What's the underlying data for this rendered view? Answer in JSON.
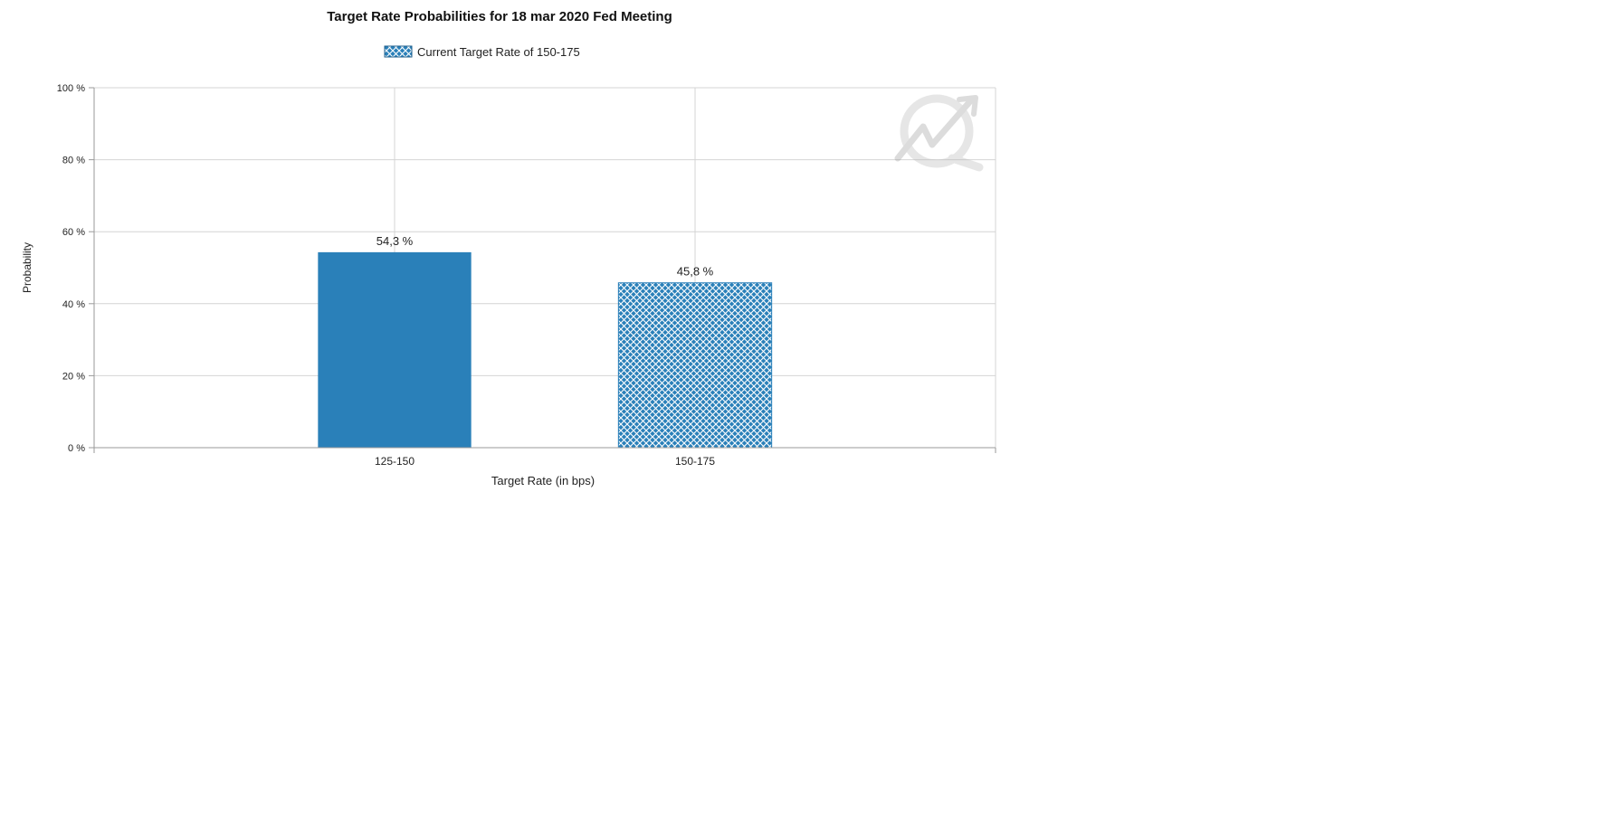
{
  "chart_data": {
    "type": "bar",
    "title": "Target Rate Probabilities for 18 mar 2020 Fed Meeting",
    "legend": {
      "label": "Current Target Rate of 150-175",
      "position": "top-center"
    },
    "xlabel": "Target Rate (in bps)",
    "ylabel": "Probability",
    "ylim": [
      0,
      100
    ],
    "yticks": [
      {
        "value": 0,
        "label": "0 %"
      },
      {
        "value": 20,
        "label": "20 %"
      },
      {
        "value": 40,
        "label": "40 %"
      },
      {
        "value": 60,
        "label": "60 %"
      },
      {
        "value": 80,
        "label": "80 %"
      },
      {
        "value": 100,
        "label": "100 %"
      }
    ],
    "categories": [
      "125-150",
      "150-175"
    ],
    "values": [
      54.3,
      45.8
    ],
    "data_labels": [
      "54,3 %",
      "45,8 %"
    ],
    "bars": [
      {
        "category": "125-150",
        "value": 54.3,
        "label": "54,3 %",
        "style": "solid"
      },
      {
        "category": "150-175",
        "value": 45.8,
        "label": "45,8 %",
        "style": "crosshatch",
        "current": true
      }
    ],
    "grid": true,
    "colors": {
      "bar": "#2a80b9",
      "grid": "#d4d4d4",
      "axis": "#9a9a9a",
      "pattern_line": "#ffffff"
    },
    "watermark": "cme-logo"
  }
}
